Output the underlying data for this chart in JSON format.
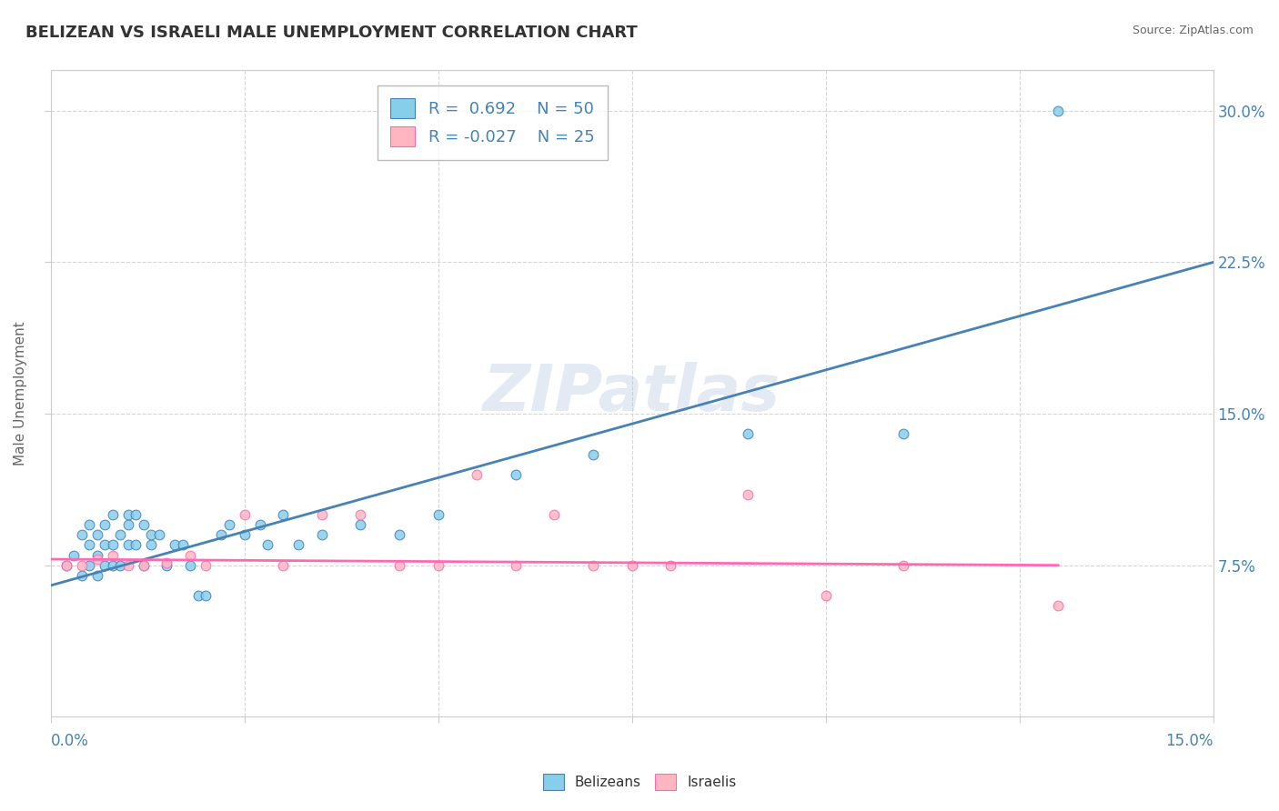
{
  "title": "BELIZEAN VS ISRAELI MALE UNEMPLOYMENT CORRELATION CHART",
  "source": "Source: ZipAtlas.com",
  "xlabel": "",
  "ylabel": "Male Unemployment",
  "xlim": [
    0.0,
    0.15
  ],
  "ylim": [
    0.0,
    0.32
  ],
  "xticks": [
    0.0,
    0.025,
    0.05,
    0.075,
    0.1,
    0.125,
    0.15
  ],
  "ytick_labels_right": [
    "7.5%",
    "15.0%",
    "22.5%",
    "30.0%"
  ],
  "yticks_right": [
    0.075,
    0.15,
    0.225,
    0.3
  ],
  "belizean_color": "#87CEEB",
  "israeli_color": "#FFB6C1",
  "belizean_line_color": "#4682B4",
  "israeli_line_color": "#FF69B4",
  "belizean_R": 0.692,
  "belizean_N": 50,
  "israeli_R": -0.027,
  "israeli_N": 25,
  "belizean_scatter_x": [
    0.002,
    0.003,
    0.004,
    0.004,
    0.005,
    0.005,
    0.005,
    0.006,
    0.006,
    0.006,
    0.007,
    0.007,
    0.007,
    0.008,
    0.008,
    0.008,
    0.009,
    0.009,
    0.01,
    0.01,
    0.01,
    0.011,
    0.011,
    0.012,
    0.012,
    0.013,
    0.013,
    0.014,
    0.015,
    0.016,
    0.017,
    0.018,
    0.019,
    0.02,
    0.022,
    0.023,
    0.025,
    0.027,
    0.028,
    0.03,
    0.032,
    0.035,
    0.04,
    0.045,
    0.05,
    0.06,
    0.07,
    0.09,
    0.11,
    0.13
  ],
  "belizean_scatter_y": [
    0.075,
    0.08,
    0.09,
    0.07,
    0.085,
    0.095,
    0.075,
    0.08,
    0.09,
    0.07,
    0.085,
    0.095,
    0.075,
    0.1,
    0.085,
    0.075,
    0.09,
    0.075,
    0.1,
    0.085,
    0.095,
    0.1,
    0.085,
    0.095,
    0.075,
    0.09,
    0.085,
    0.09,
    0.075,
    0.085,
    0.085,
    0.075,
    0.06,
    0.06,
    0.09,
    0.095,
    0.09,
    0.095,
    0.085,
    0.1,
    0.085,
    0.09,
    0.095,
    0.09,
    0.1,
    0.12,
    0.13,
    0.14,
    0.14,
    0.3
  ],
  "israeli_scatter_x": [
    0.002,
    0.004,
    0.006,
    0.008,
    0.01,
    0.012,
    0.015,
    0.018,
    0.02,
    0.025,
    0.03,
    0.035,
    0.04,
    0.045,
    0.05,
    0.055,
    0.06,
    0.065,
    0.07,
    0.075,
    0.08,
    0.09,
    0.1,
    0.11,
    0.13
  ],
  "israeli_scatter_y": [
    0.075,
    0.075,
    0.078,
    0.08,
    0.075,
    0.075,
    0.076,
    0.08,
    0.075,
    0.1,
    0.075,
    0.1,
    0.1,
    0.075,
    0.075,
    0.12,
    0.075,
    0.1,
    0.075,
    0.075,
    0.075,
    0.11,
    0.06,
    0.075,
    0.055
  ],
  "belizean_line_x": [
    0.0,
    0.15
  ],
  "belizean_line_y": [
    0.065,
    0.225
  ],
  "israeli_line_x": [
    0.0,
    0.13
  ],
  "israeli_line_y": [
    0.078,
    0.075
  ],
  "watermark": "ZIPatlas",
  "background_color": "#ffffff",
  "title_color": "#333333",
  "axis_label_color": "#4682B4",
  "grid_color": "#cccccc",
  "title_fontsize": 13,
  "label_fontsize": 11
}
